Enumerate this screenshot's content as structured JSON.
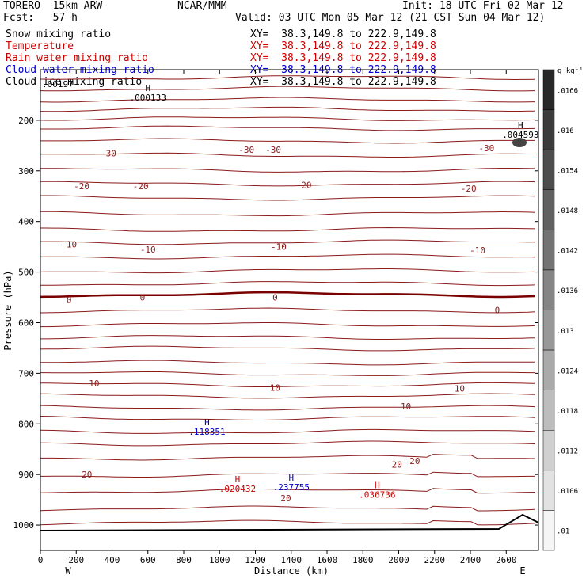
{
  "header": {
    "model": "TORERO  15km ARW",
    "center": "NCAR/MMM",
    "init": "Init: 18 UTC Fri 02 Mar 12",
    "fcst": "Fcst:   57 h",
    "valid": "Valid: 03 UTC Mon 05 Mar 12 (21 CST Sun 04 Mar 12)"
  },
  "fields": [
    {
      "name": "Snow mixing ratio",
      "xy": "XY=  38.3,149.8 to 222.9,149.8",
      "color": "#000000"
    },
    {
      "name": "Temperature",
      "xy": "XY=  38.3,149.8 to 222.9,149.8",
      "color": "#cc0000"
    },
    {
      "name": "Rain water mixing ratio",
      "xy": "XY=  38.3,149.8 to 222.9,149.8",
      "color": "#cc0000"
    },
    {
      "name": "Cloud water mixing ratio",
      "xy": "XY=  38.3,149.8 to 222.9,149.8",
      "color": "#0000cc"
    },
    {
      "name": "Cloud ice mixing ratio",
      "xy": "XY=  38.3,149.8 to 222.9,149.8",
      "color": "#000000"
    }
  ],
  "chart_data": {
    "type": "contour-cross-section",
    "xlabel": "Distance (km)",
    "ylabel": "Pressure (hPa)",
    "xlim": [
      0,
      2780
    ],
    "ylim": [
      1050,
      100
    ],
    "x_ticks": [
      "0",
      "200",
      "400",
      "600",
      "800",
      "1000",
      "1200",
      "1400",
      "1600",
      "1800",
      "2000",
      "2200",
      "2400",
      "2600"
    ],
    "y_ticks": [
      "200",
      "300",
      "400",
      "500",
      "600",
      "700",
      "800",
      "900",
      "1000"
    ],
    "x_end_labels": {
      "left": "W",
      "right": "E"
    },
    "colorbar": {
      "unit": "g kg⁻¹",
      "ticks": [
        ".0166",
        ".016",
        ".0154",
        ".0148",
        ".0142",
        ".0136",
        ".013",
        ".0124",
        ".0118",
        ".0112",
        ".0106",
        ".01"
      ]
    },
    "temperature_labels": [
      {
        "text": "-30",
        "x": 380,
        "p": 265
      },
      {
        "text": "-30",
        "x": 1150,
        "p": 258
      },
      {
        "text": "-30",
        "x": 1300,
        "p": 258
      },
      {
        "text": "-30",
        "x": 2490,
        "p": 255
      },
      {
        "text": "-20",
        "x": 230,
        "p": 330
      },
      {
        "text": "-20",
        "x": 560,
        "p": 330
      },
      {
        "text": "-20",
        "x": 1470,
        "p": 328
      },
      {
        "text": "-20",
        "x": 2390,
        "p": 335
      },
      {
        "text": "-10",
        "x": 160,
        "p": 445
      },
      {
        "text": "-10",
        "x": 600,
        "p": 455
      },
      {
        "text": "-10",
        "x": 1330,
        "p": 450
      },
      {
        "text": "-10",
        "x": 2440,
        "p": 457
      },
      {
        "text": "0",
        "x": 160,
        "p": 555
      },
      {
        "text": "0",
        "x": 570,
        "p": 550
      },
      {
        "text": "0",
        "x": 1310,
        "p": 550
      },
      {
        "text": "0",
        "x": 2550,
        "p": 575
      },
      {
        "text": "10",
        "x": 300,
        "p": 720
      },
      {
        "text": "10",
        "x": 1310,
        "p": 728
      },
      {
        "text": "10",
        "x": 2040,
        "p": 765
      },
      {
        "text": "10",
        "x": 2340,
        "p": 730
      },
      {
        "text": "20",
        "x": 260,
        "p": 900
      },
      {
        "text": "20",
        "x": 1370,
        "p": 947
      },
      {
        "text": "20",
        "x": 1990,
        "p": 880
      },
      {
        "text": "20",
        "x": 2090,
        "p": 873
      }
    ],
    "maxima": [
      {
        "field": "Cloud ice mixing ratio",
        "value": ".000133",
        "x": 600,
        "p": 155
      },
      {
        "field": "Snow mixing ratio",
        "value": ".004593",
        "x": 2680,
        "p": 228
      },
      {
        "field": "Cloud water mixing ratio",
        "value": ".118351",
        "x": 930,
        "p": 815
      },
      {
        "field": "Cloud water mixing ratio",
        "value": ".237755",
        "x": 1400,
        "p": 925
      },
      {
        "field": "Rain water mixing ratio",
        "value": ".020432",
        "x": 1100,
        "p": 928
      },
      {
        "field": "Rain water mixing ratio",
        "value": ".036736",
        "x": 1880,
        "p": 940
      }
    ],
    "lowest_left_label": ".00197"
  }
}
